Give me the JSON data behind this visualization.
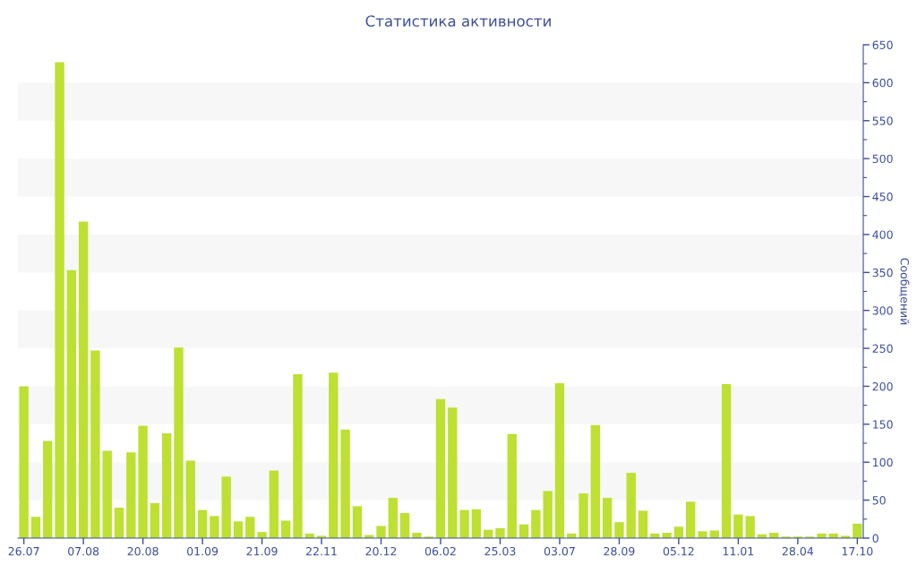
{
  "chart_data": {
    "type": "bar",
    "title": "Статистика активности",
    "ylabel": "Сообщений",
    "categories": [
      "26.07",
      null,
      null,
      null,
      null,
      "07.08",
      null,
      null,
      null,
      null,
      "20.08",
      null,
      null,
      null,
      null,
      "01.09",
      null,
      null,
      null,
      null,
      "21.09",
      null,
      null,
      null,
      null,
      "22.11",
      null,
      null,
      null,
      null,
      "20.12",
      null,
      null,
      null,
      null,
      "06.02",
      null,
      null,
      null,
      null,
      "25.03",
      null,
      null,
      null,
      null,
      "03.07",
      null,
      null,
      null,
      null,
      "28.09",
      null,
      null,
      null,
      null,
      "05.12",
      null,
      null,
      null,
      null,
      "11.01",
      null,
      null,
      null,
      null,
      "28.04",
      null,
      null,
      null,
      null,
      "17.10"
    ],
    "values": [
      200,
      28,
      128,
      627,
      353,
      417,
      247,
      115,
      40,
      113,
      148,
      46,
      138,
      251,
      102,
      37,
      29,
      81,
      22,
      28,
      8,
      89,
      23,
      216,
      6,
      3,
      218,
      143,
      42,
      4,
      16,
      53,
      33,
      7,
      2,
      183,
      172,
      37,
      38,
      11,
      13,
      137,
      18,
      37,
      62,
      204,
      6,
      59,
      149,
      53,
      21,
      86,
      36,
      6,
      7,
      15,
      48,
      9,
      10,
      203,
      31,
      29,
      5,
      7,
      2,
      2,
      2,
      6,
      6,
      3,
      19
    ],
    "color": "#bde032",
    "ylim": [
      0,
      650
    ],
    "yticks": [
      0,
      50,
      100,
      150,
      200,
      250,
      300,
      350,
      400,
      450,
      500,
      550,
      600,
      650
    ],
    "grid": false,
    "bands": [
      {
        "axis": "y",
        "from": 50,
        "to": 100,
        "color": "#f7f7f7"
      },
      {
        "axis": "y",
        "from": 150,
        "to": 200,
        "color": "#f7f7f7"
      },
      {
        "axis": "y",
        "from": 250,
        "to": 300,
        "color": "#f7f7f7"
      },
      {
        "axis": "y",
        "from": 350,
        "to": 400,
        "color": "#f7f7f7"
      },
      {
        "axis": "y",
        "from": 450,
        "to": 500,
        "color": "#f7f7f7"
      },
      {
        "axis": "y",
        "from": 550,
        "to": 600,
        "color": "#f7f7f7"
      }
    ]
  }
}
